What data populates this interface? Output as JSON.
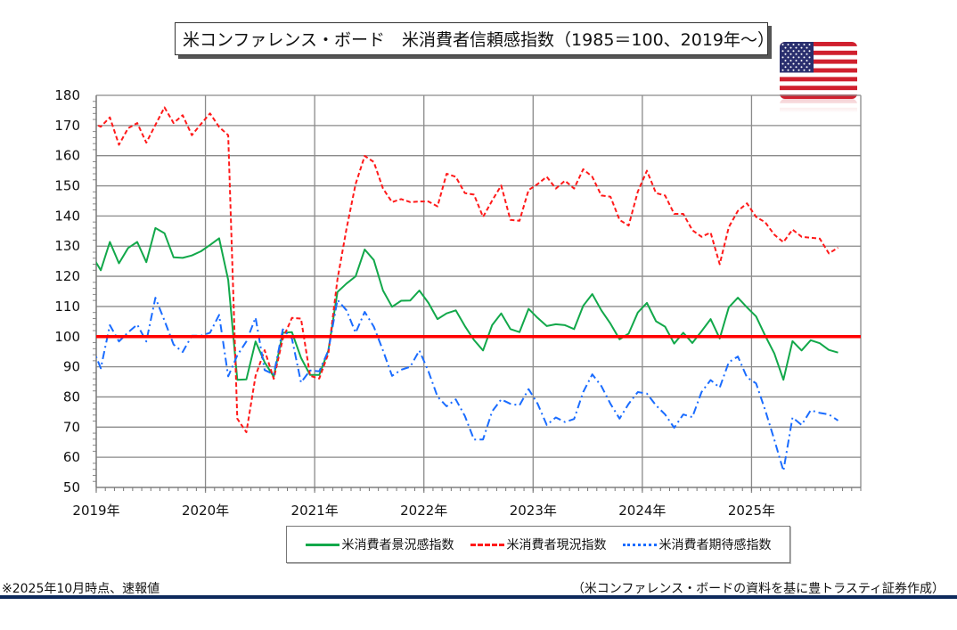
{
  "title": "米コンファレンス・ボード　米消費者信頼感指数（1985＝100、2019年～）",
  "note": "※2025年10月時点、速報値",
  "source": "（米コンファレンス・ボードの資料を基に豊トラスティ証券作成）",
  "flag_icon": "us-flag-icon",
  "colors": {
    "confidence": "#12a84a",
    "present": "#ff1a1a",
    "expectations": "#1a6cff",
    "baseline": "#ff0000",
    "rule": "#0d2a5c"
  },
  "chart_data": {
    "type": "line",
    "title": "米コンファレンス・ボード　米消費者信頼感指数（1985＝100、2019年～）",
    "xlabel": "",
    "ylabel": "",
    "ylim": [
      50,
      180
    ],
    "yticks": [
      "50",
      "60",
      "70",
      "80",
      "90",
      "100",
      "110",
      "120",
      "130",
      "140",
      "150",
      "160",
      "170",
      "180"
    ],
    "xticks": [
      "2019年",
      "2020年",
      "2021年",
      "2022年",
      "2023年",
      "2024年",
      "2025年"
    ],
    "x_start": "2018-12",
    "x_end": "2025-10",
    "frequency": "monthly",
    "grid": true,
    "reference_line": 100,
    "legend_position": "bottom",
    "series": [
      {
        "name": "米消費者景況感指数",
        "key": "confidence",
        "values": [
          127,
          122.0,
          131.4,
          124.3,
          129.4,
          131.4,
          124.7,
          136.0,
          134.3,
          126.3,
          126.1,
          126.9,
          128.3,
          130.4,
          132.6,
          118.8,
          85.7,
          85.8,
          98.4,
          91.5,
          86.7,
          101.3,
          101.5,
          93.0,
          87.3,
          87.3,
          95.4,
          114.8,
          117.6,
          120.0,
          128.9,
          125.4,
          115.3,
          109.9,
          111.9,
          112.0,
          115.3,
          111.2,
          105.8,
          107.7,
          108.7,
          103.5,
          98.9,
          95.4,
          103.8,
          107.7,
          102.5,
          101.5,
          109.2,
          106.2,
          103.5,
          104.1,
          103.8,
          102.5,
          110.2,
          114.1,
          108.7,
          104.3,
          99.1,
          101.0,
          108.0,
          111.2,
          105.1,
          103.3,
          97.7,
          101.3,
          97.9,
          101.8,
          105.8,
          99.4,
          109.7,
          112.9,
          109.7,
          106.7,
          100.3,
          94.4,
          85.7,
          98.5,
          95.4,
          98.8,
          97.8,
          95.6,
          94.7
        ]
      },
      {
        "name": "米消費者現況指数",
        "key": "present",
        "values": [
          171,
          169.6,
          172.7,
          163.6,
          169.1,
          170.8,
          164.3,
          170.2,
          176.0,
          170.8,
          173.4,
          166.8,
          170.5,
          174.0,
          169.5,
          166.8,
          72.8,
          68.3,
          87.0,
          95.5,
          86.0,
          99.3,
          106.2,
          106.0,
          87.0,
          86.1,
          94.4,
          119.0,
          135.8,
          150.6,
          159.9,
          157.9,
          149.1,
          144.6,
          145.6,
          144.6,
          144.8,
          144.8,
          143.2,
          154.0,
          153.0,
          147.6,
          147.1,
          139.7,
          145.1,
          150.1,
          138.7,
          138.4,
          148.6,
          150.6,
          153.0,
          149.1,
          151.7,
          149.1,
          155.5,
          153.0,
          146.8,
          146.4,
          138.7,
          136.8,
          148.1,
          155.0,
          147.6,
          146.8,
          140.7,
          140.7,
          135.3,
          133.1,
          134.5,
          124.0,
          136.3,
          141.7,
          144.2,
          139.7,
          137.9,
          133.8,
          131.3,
          135.5,
          133.1,
          132.8,
          132.5,
          127.6,
          129.5
        ]
      },
      {
        "name": "米消費者期待感指数",
        "key": "expectations",
        "values": [
          97,
          89.5,
          103.8,
          98.4,
          101.4,
          104.0,
          98.4,
          112.9,
          105.3,
          97.4,
          94.9,
          100.3,
          100.3,
          101.3,
          107.2,
          86.8,
          93.8,
          98.4,
          106.3,
          88.9,
          87.5,
          102.4,
          99.4,
          84.8,
          88.8,
          88.5,
          95.4,
          112.2,
          108.7,
          101.3,
          108.2,
          103.3,
          95.4,
          87.0,
          89.0,
          90.0,
          95.4,
          88.5,
          80.1,
          76.9,
          79.2,
          73.7,
          65.9,
          65.9,
          75.2,
          79.2,
          77.7,
          77.2,
          82.6,
          77.7,
          70.7,
          73.2,
          71.7,
          72.7,
          81.6,
          87.5,
          83.6,
          77.7,
          72.8,
          77.7,
          81.6,
          81.1,
          77.2,
          74.2,
          69.8,
          74.2,
          73.3,
          81.6,
          85.6,
          83.1,
          91.5,
          93.4,
          86.5,
          84.5,
          75.6,
          65.8,
          55.5,
          73.2,
          70.7,
          75.6,
          74.7,
          74.2,
          72.2
        ]
      }
    ]
  }
}
